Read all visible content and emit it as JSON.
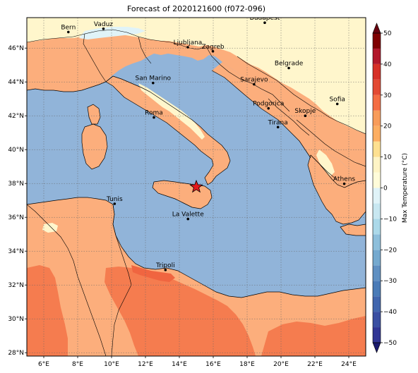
{
  "title": "Forecast of 2020121600 (f072-096)",
  "map": {
    "lon_range": [
      5,
      25
    ],
    "lat_range": [
      27.8,
      47.8
    ],
    "lon_ticks": [
      {
        "v": 6,
        "t": "6°E"
      },
      {
        "v": 8,
        "t": "8°E"
      },
      {
        "v": 10,
        "t": "10°E"
      },
      {
        "v": 12,
        "t": "12°E"
      },
      {
        "v": 14,
        "t": "14°E"
      },
      {
        "v": 16,
        "t": "16°E"
      },
      {
        "v": 18,
        "t": "18°E"
      },
      {
        "v": 20,
        "t": "20°E"
      },
      {
        "v": 22,
        "t": "22°E"
      },
      {
        "v": 24,
        "t": "24°E"
      }
    ],
    "lat_ticks": [
      {
        "v": 28,
        "t": "28°N"
      },
      {
        "v": 30,
        "t": "30°N"
      },
      {
        "v": 32,
        "t": "32°N"
      },
      {
        "v": 34,
        "t": "34°N"
      },
      {
        "v": 36,
        "t": "36°N"
      },
      {
        "v": 38,
        "t": "38°N"
      },
      {
        "v": 40,
        "t": "40°N"
      },
      {
        "v": 42,
        "t": "42°N"
      },
      {
        "v": 44,
        "t": "44°N"
      },
      {
        "v": 46,
        "t": "46°N"
      }
    ],
    "grid": true,
    "marker": {
      "name": "forecast-point",
      "lon": 15.0,
      "lat": 37.8,
      "shape": "star",
      "color": "#e41a1c"
    }
  },
  "cities": [
    {
      "name": "Bern",
      "lon": 7.45,
      "lat": 46.95
    },
    {
      "name": "Vaduz",
      "lon": 9.52,
      "lat": 47.14
    },
    {
      "name": "Budapest",
      "lon": 19.04,
      "lat": 47.5
    },
    {
      "name": "Ljubljana",
      "lon": 14.5,
      "lat": 46.05
    },
    {
      "name": "Zagreb",
      "lon": 15.98,
      "lat": 45.81
    },
    {
      "name": "Belgrade",
      "lon": 20.46,
      "lat": 44.82
    },
    {
      "name": "San Marino",
      "lon": 12.45,
      "lat": 43.94
    },
    {
      "name": "Sarajevo",
      "lon": 18.41,
      "lat": 43.86
    },
    {
      "name": "Sofia",
      "lon": 23.32,
      "lat": 42.7
    },
    {
      "name": "Podgorica",
      "lon": 19.26,
      "lat": 42.44
    },
    {
      "name": "Skopje",
      "lon": 21.43,
      "lat": 42.0
    },
    {
      "name": "Roma",
      "lon": 12.5,
      "lat": 41.9
    },
    {
      "name": "Tirana",
      "lon": 19.82,
      "lat": 41.33
    },
    {
      "name": "Athens",
      "lon": 23.73,
      "lat": 37.98
    },
    {
      "name": "Tunis",
      "lon": 10.18,
      "lat": 36.8
    },
    {
      "name": "La Valette",
      "lon": 14.51,
      "lat": 35.9
    },
    {
      "name": "Tripoli",
      "lon": 13.18,
      "lat": 32.89
    }
  ],
  "colorbar": {
    "label": "Max Temperature (°C)",
    "min": -50,
    "max": 50,
    "ticks": [
      {
        "v": 50,
        "t": "50"
      },
      {
        "v": 40,
        "t": "40"
      },
      {
        "v": 30,
        "t": "30"
      },
      {
        "v": 20,
        "t": "20"
      },
      {
        "v": 10,
        "t": "10"
      },
      {
        "v": 0,
        "t": "0"
      },
      {
        "v": -10,
        "t": "−10"
      },
      {
        "v": -20,
        "t": "−20"
      },
      {
        "v": -30,
        "t": "−30"
      },
      {
        "v": -40,
        "t": "−40"
      },
      {
        "v": -50,
        "t": "−50"
      }
    ],
    "bands": [
      {
        "from": -50,
        "to": -45,
        "color": "#313695"
      },
      {
        "from": -45,
        "to": -40,
        "color": "#3a4fa2"
      },
      {
        "from": -40,
        "to": -35,
        "color": "#4166ae"
      },
      {
        "from": -35,
        "to": -30,
        "color": "#4a7bb7"
      },
      {
        "from": -30,
        "to": -25,
        "color": "#5f90c2"
      },
      {
        "from": -25,
        "to": -20,
        "color": "#74a9cf"
      },
      {
        "from": -20,
        "to": -15,
        "color": "#8dbfdb"
      },
      {
        "from": -15,
        "to": -10,
        "color": "#abd9e9"
      },
      {
        "from": -10,
        "to": -5,
        "color": "#c8e7f1"
      },
      {
        "from": -5,
        "to": 0,
        "color": "#e0f3f8"
      },
      {
        "from": 0,
        "to": 5,
        "color": "#fffcd9"
      },
      {
        "from": 5,
        "to": 10,
        "color": "#fef4c5"
      },
      {
        "from": 10,
        "to": 15,
        "color": "#fee090"
      },
      {
        "from": 15,
        "to": 20,
        "color": "#fdae61"
      },
      {
        "from": 20,
        "to": 25,
        "color": "#f89c5a"
      },
      {
        "from": 25,
        "to": 30,
        "color": "#f46d43"
      },
      {
        "from": 30,
        "to": 35,
        "color": "#e34a33"
      },
      {
        "from": 35,
        "to": 40,
        "color": "#d73027"
      },
      {
        "from": 40,
        "to": 45,
        "color": "#b2182b"
      },
      {
        "from": 45,
        "to": 50,
        "color": "#7f0000"
      }
    ],
    "under_color": "#1a1a6e",
    "over_color": "#67000d"
  },
  "fields": {
    "sea": "#91b4d9",
    "warm_land": "#fcae7c",
    "hot_land": "#f57c4f",
    "cool_land": "#fff6cc",
    "snow": "#e0f3f8",
    "hottest": "#f06540"
  }
}
